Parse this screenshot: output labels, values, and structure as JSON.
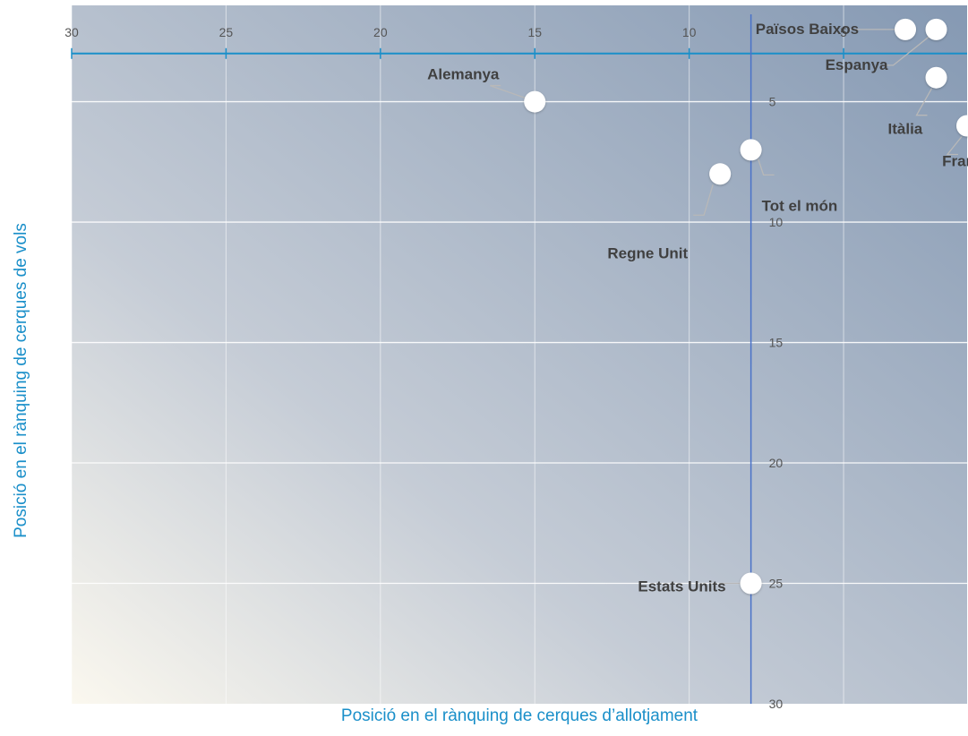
{
  "chart_data": {
    "type": "scatter",
    "xlabel": "Posició en el rànquing de cerques d’allotjament",
    "ylabel": "Posició en el rànquing de cerques de vols",
    "xlim": [
      30,
      1
    ],
    "ylim": [
      1,
      30
    ],
    "x_reversed": true,
    "y_reversed": true,
    "x_ticks": [
      30,
      25,
      20,
      15,
      10,
      5
    ],
    "y_ticks": [
      5,
      10,
      15,
      20,
      25,
      30
    ],
    "crosshair": {
      "x": 8,
      "y": 3
    },
    "grid": true,
    "points": [
      {
        "label": "Països Baixos",
        "x": 3,
        "y": 2
      },
      {
        "label": "Espanya",
        "x": 2,
        "y": 2
      },
      {
        "label": "Alemanya",
        "x": 15,
        "y": 5
      },
      {
        "label": "Itàlia",
        "x": 2,
        "y": 4
      },
      {
        "label": "França",
        "x": 1,
        "y": 6
      },
      {
        "label": "Tot el món",
        "x": 8,
        "y": 7
      },
      {
        "label": "Regne Unit",
        "x": 9,
        "y": 8
      },
      {
        "label": "Estats Units",
        "x": 8,
        "y": 25
      }
    ],
    "colors": {
      "axis": "#1a8fc9",
      "crosshair_v": "#4a72c8",
      "marker": "#ffffff",
      "label": "#404040"
    }
  }
}
